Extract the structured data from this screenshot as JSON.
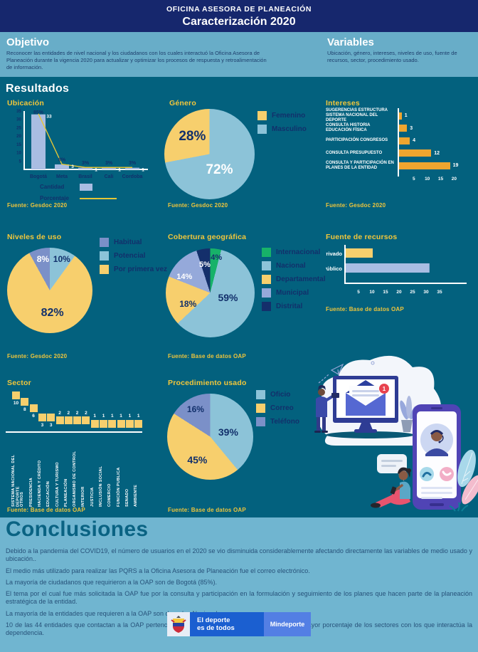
{
  "palette": {
    "navy": "#16276d",
    "teal": "#03617e",
    "band_blue": "#68adc8",
    "label_navy": "#12306b",
    "white": "#ffffff",
    "yellow": "#f7cf6d",
    "orange": "#efa52f",
    "lavender": "#a9bde2",
    "light_blue": "#8cc3d8",
    "periwinkle": "#7b90c8",
    "municipal_blue": "#95a9da",
    "green": "#17b269",
    "dark_slice": "#142f6b",
    "title_yellow": "#f2c73b",
    "line_yellow": "#e5c636",
    "conclusions_bg": "#70b5d0",
    "footer_blue": "#1b5fd0",
    "footer_blue_light": "#537fe4"
  },
  "header": {
    "org": "OFICINA ASESORA DE PLANEACIÓN",
    "title": "Caracterización 2020"
  },
  "objetivo": {
    "title": "Objetivo",
    "text": "Reconocer las entidades de nivel nacional y los ciudadanos con los cuales interactuó la Oficina Asesora de Planeación durante la vigencia 2020 para actualizar y optimizar los procesos de respuesta y retroalimentación de información."
  },
  "variables": {
    "title": "Variables",
    "text": "Ubicación, género, intereses, niveles de uso, fuente de recursos, sector, procedimiento usado."
  },
  "resultados": {
    "title": "Resultados"
  },
  "chart_data": [
    {
      "id": "ubicacion",
      "type": "bar",
      "title": "Ubicación",
      "categories": [
        "Bogotá",
        "Meta",
        "Brasil",
        "Cali",
        "Cordoba"
      ],
      "series": [
        {
          "name": "Cantidad",
          "type": "bar",
          "values": [
            33,
            3,
            1,
            1,
            1
          ]
        },
        {
          "name": "Porcentaje",
          "type": "line",
          "values": [
            85,
            8,
            3,
            3,
            3
          ]
        }
      ],
      "pct_labels": [
        "85%",
        "8%",
        "3%",
        "3%",
        "3%"
      ],
      "yticks": [
        5,
        10,
        15,
        20,
        25,
        30,
        35
      ],
      "ylim": [
        0,
        35
      ],
      "source": "Fuente: Gesdoc 2020"
    },
    {
      "id": "genero",
      "type": "pie",
      "title": "Género",
      "slices": [
        {
          "label": "Masculino",
          "value": 72,
          "pct_label": "72%",
          "color": "#8cc3d8"
        },
        {
          "label": "Femenino",
          "value": 28,
          "pct_label": "28%",
          "color": "#f7cf6d"
        }
      ],
      "legend_order": [
        "Femenino",
        "Masculino"
      ],
      "source": "Fuente: Gesdoc 2020"
    },
    {
      "id": "intereses",
      "type": "bar",
      "title": "Intereses",
      "categories": [
        "SUGERENCIAS ESTRUCTURA SISTEMA NACIONAL DEL DEPORTE",
        "CONSULTA HISTORIA EDUCACIÓN FÍSICA",
        "PARTICIPACIÓN CONGRESOS",
        "CONSULTA PRESUPUESTO",
        "CONSULTA Y PARTICIPACIÓN EN PLANES DE LA ENTIDAD"
      ],
      "values": [
        1,
        3,
        4,
        12,
        19
      ],
      "xticks": [
        5,
        10,
        15,
        20
      ],
      "xlim": [
        0,
        22
      ],
      "source": "Fuente: Gesdoc 2020"
    },
    {
      "id": "niveles",
      "type": "pie",
      "title": "Niveles de uso",
      "slices": [
        {
          "label": "Potencial",
          "value": 10,
          "pct_label": "10%",
          "color": "#8cc3d8"
        },
        {
          "label": "Por primera vez",
          "value": 82,
          "pct_label": "82%",
          "color": "#f7cf6d"
        },
        {
          "label": "Habitual",
          "value": 8,
          "pct_label": "8%",
          "color": "#7b90c8"
        }
      ],
      "legend_order": [
        "Habitual",
        "Potencial",
        "Por primera vez"
      ],
      "source": "Fuente: Gesdoc 2020"
    },
    {
      "id": "cobertura",
      "type": "pie",
      "title": "Cobertura geográfica",
      "slices": [
        {
          "label": "Internacional",
          "value": 4,
          "pct_label": "4%",
          "color": "#17b269"
        },
        {
          "label": "Nacional",
          "value": 59,
          "pct_label": "59%",
          "color": "#8cc3d8"
        },
        {
          "label": "Departamental",
          "value": 18,
          "pct_label": "18%",
          "color": "#f7cf6d"
        },
        {
          "label": "Municipal",
          "value": 14,
          "pct_label": "14%",
          "color": "#95a9da"
        },
        {
          "label": "Distrital",
          "value": 5,
          "pct_label": "5%",
          "color": "#142f6b"
        }
      ],
      "legend_order": [
        "Internacional",
        "Nacional",
        "Departamental",
        "Municipal",
        "Distrital"
      ],
      "source": "Fuente: Base de datos OAP"
    },
    {
      "id": "recursos",
      "type": "bar",
      "title": "Fuente de recursos",
      "categories": [
        "Privado",
        "Público"
      ],
      "values": [
        10,
        31
      ],
      "colors": [
        "#f7cf6d",
        "#a9bde2"
      ],
      "xticks": [
        5,
        10,
        15,
        20,
        25,
        30,
        35
      ],
      "xlim": [
        0,
        36
      ],
      "source": "Fuente: Base de datos OAP"
    },
    {
      "id": "sector",
      "type": "bar",
      "title": "Sector",
      "categories": [
        "SISTEMA NACIONAL DEL DEPORTE",
        "OTROS",
        "PRESIDENCIA",
        "HACIENDA Y CRÉDITO",
        "EDUCACIÓN",
        "CULTURA Y TURISMO",
        "PLANEACIÓN",
        "ORGANISMO DE CONTROL",
        "INTERIOR",
        "JUSTICIA",
        "INCLUSIÓN SOCIAL",
        "COMERCIO",
        "FUNCIÓN PUBLICA",
        "SENADO",
        "AMBIENTE"
      ],
      "values": [
        10,
        8,
        6,
        3,
        3,
        2,
        2,
        2,
        2,
        1,
        1,
        1,
        1,
        1,
        1
      ],
      "source": "Fuente: Base de datos OAP"
    },
    {
      "id": "procedimiento",
      "type": "pie",
      "title": "Procedimiento usado",
      "slices": [
        {
          "label": "Oficio",
          "value": 39,
          "pct_label": "39%",
          "color": "#8cc3d8"
        },
        {
          "label": "Correo",
          "value": 45,
          "pct_label": "45%",
          "color": "#f7cf6d"
        },
        {
          "label": "Teléfono",
          "value": 16,
          "pct_label": "16%",
          "color": "#7b90c8"
        }
      ],
      "legend_order": [
        "Oficio",
        "Correo",
        "Teléfono"
      ],
      "source": "Fuente: Base de datos OAP"
    }
  ],
  "illustration": {
    "badge": "1"
  },
  "conclusiones": {
    "title": "Conclusiones",
    "items": [
      "Debido a la pandemia del COVID19, el número de usuarios en el 2020 se vio disminuida considerablemente afectando directamente las variables de medio usado y ubicación..",
      "El medio más utilizado para realizar las PQRS a la Oficina Asesora de Planeación fue el correo electrónico.",
      "La mayoría de ciudadanos que requirieron a la OAP son de Bogotá (85%).",
      "El tema por el cual fue más solicitada la OAP fue por la consulta y participación en la formulación y seguimiento de los planes que hacen parte de la planeación estratégica de la entidad.",
      "La mayoría de la entidades que requieren a la OAP son de orden Nacional.",
      "10 de las 44 entidades que contactan a la OAP pertencen al Sistema Nacional del Deporte, siendo el mayor porcentaje de los sectores con los que interactúa la dependencia."
    ]
  },
  "footer": {
    "brand_line1": "El deporte",
    "brand_line2": "es de todos",
    "ministry": "Mindeporte"
  }
}
